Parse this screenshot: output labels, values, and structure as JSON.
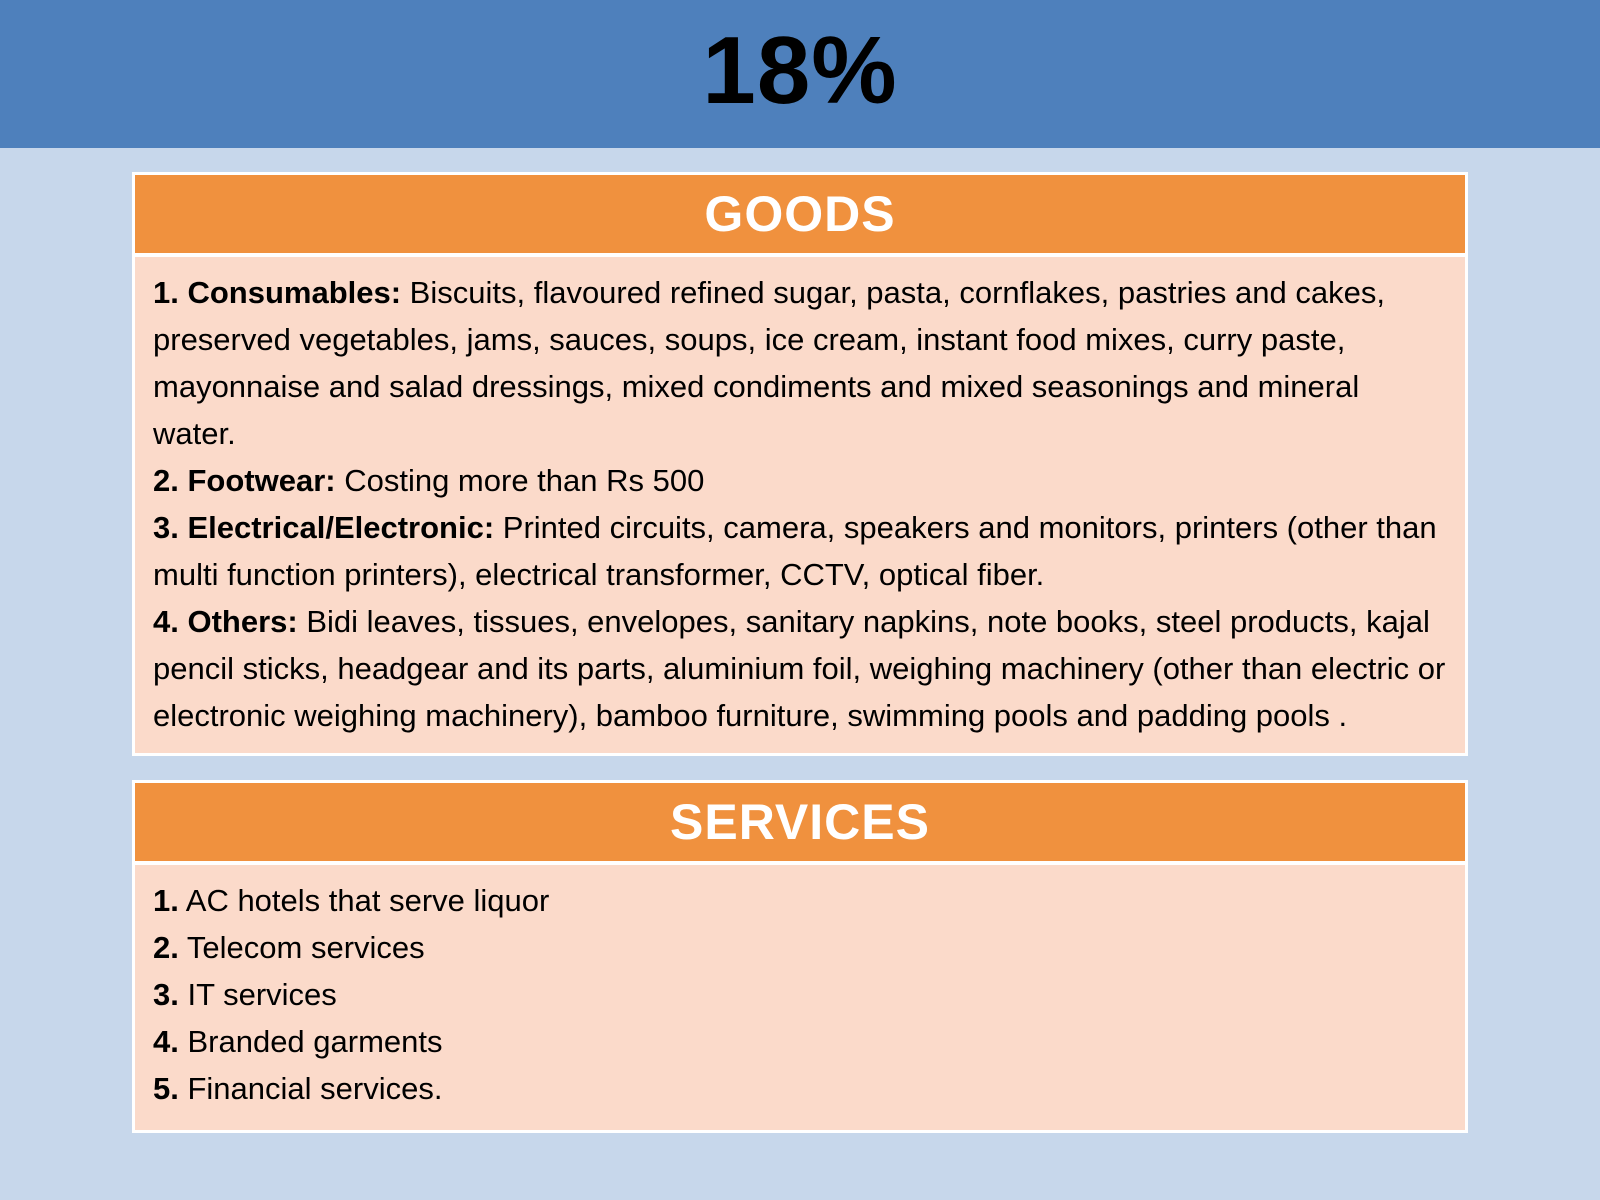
{
  "page": {
    "title": "18%"
  },
  "colors": {
    "banner_blue": "#4e80bc",
    "page_blue": "#c7d7eb",
    "header_orange": "#f0913e",
    "body_peach": "#fbdaca"
  },
  "goods": {
    "header": "GOODS",
    "items": [
      {
        "label": "1. Consumables:",
        "text": "  Biscuits, flavoured refined sugar, pasta, cornflakes, pastries and cakes, preserved vegetables, jams, sauces, soups, ice cream, instant food mixes, curry paste, mayonnaise and salad dressings, mixed condiments and mixed seasonings and mineral water."
      },
      {
        "label": "2. Footwear:",
        "text": " Costing more than Rs 500"
      },
      {
        "label": "3. Electrical/Electronic:",
        "text": "  Printed circuits, camera, speakers and monitors, printers (other than multi function printers), electrical transformer, CCTV, optical fiber."
      },
      {
        "label": "4. Others:",
        "text": " Bidi leaves, tissues, envelopes, sanitary napkins, note books, steel products, kajal pencil sticks, headgear and its parts, aluminium foil, weighing machinery (other than electric or electronic weighing machinery), bamboo furniture, swimming pools and padding pools ."
      }
    ]
  },
  "services": {
    "header": "SERVICES",
    "items": [
      {
        "label": "1.",
        "text": "  AC hotels that serve liquor"
      },
      {
        "label": "2.",
        "text": " Telecom services"
      },
      {
        "label": "3.",
        "text": " IT services"
      },
      {
        "label": "4.",
        "text": " Branded garments"
      },
      {
        "label": "5.",
        "text": " Financial services."
      }
    ]
  }
}
